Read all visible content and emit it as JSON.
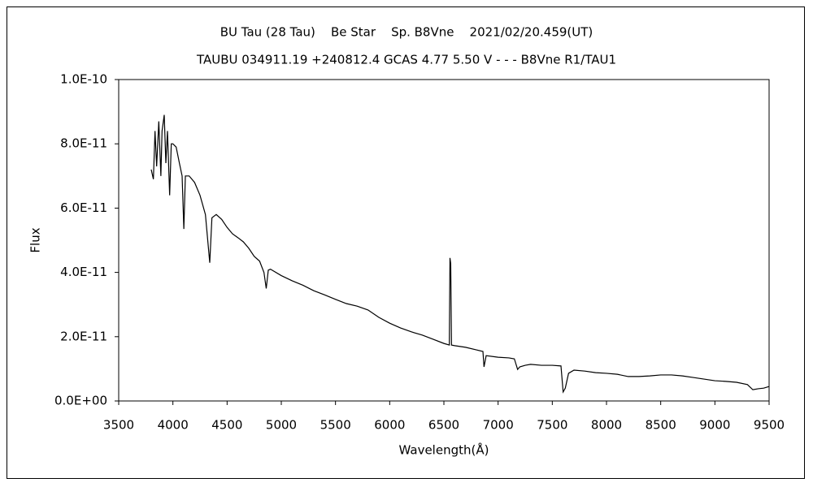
{
  "chart_data": {
    "type": "line",
    "title": "BU Tau (28 Tau)    Be Star    Sp. B8Vne    2021/02/20.459(UT)",
    "subtitle": "TAUBU 034911.19 +240812.4 GCAS 4.77 5.50 V - - - B8Vne R1/TAU1",
    "x_label": "Wavelength(Å)",
    "y_label": "Flux",
    "xlim": [
      3500,
      9500
    ],
    "xticks": [
      3500,
      4000,
      4500,
      5000,
      5500,
      6000,
      6500,
      7000,
      7500,
      8000,
      8500,
      9000,
      9500
    ],
    "ylim": [
      0,
      1e-10
    ],
    "yticks": [
      {
        "value": 0,
        "label": "0.0E+00"
      },
      {
        "value": 2e-11,
        "label": "2.0E-11"
      },
      {
        "value": 4e-11,
        "label": "4.0E-11"
      },
      {
        "value": 6e-11,
        "label": "6.0E-11"
      },
      {
        "value": 8e-11,
        "label": "8.0E-11"
      },
      {
        "value": 1e-10,
        "label": "1.0E-10"
      }
    ],
    "grid": false,
    "color": "#000000",
    "x": [
      3800,
      3820,
      3835,
      3850,
      3870,
      3889,
      3900,
      3920,
      3935,
      3950,
      3970,
      3985,
      4000,
      4030,
      4060,
      4085,
      4101,
      4115,
      4150,
      4200,
      4250,
      4300,
      4340,
      4360,
      4400,
      4450,
      4500,
      4550,
      4600,
      4650,
      4700,
      4750,
      4800,
      4840,
      4861,
      4880,
      4900,
      5000,
      5100,
      5200,
      5300,
      5400,
      5500,
      5600,
      5700,
      5800,
      5900,
      6000,
      6100,
      6200,
      6300,
      6400,
      6500,
      6550,
      6556,
      6563,
      6570,
      6600,
      6700,
      6800,
      6860,
      6870,
      6890,
      7000,
      7100,
      7150,
      7180,
      7200,
      7250,
      7300,
      7400,
      7500,
      7580,
      7600,
      7620,
      7650,
      7700,
      7800,
      7900,
      8000,
      8100,
      8200,
      8300,
      8400,
      8500,
      8600,
      8700,
      8800,
      8900,
      9000,
      9100,
      9200,
      9300,
      9350,
      9400,
      9450,
      9500
    ],
    "values": [
      7.2e-11,
      6.9e-11,
      8.4e-11,
      7.3e-11,
      8.7e-11,
      7e-11,
      8.4e-11,
      8.9e-11,
      7.4e-11,
      8.4e-11,
      6.4e-11,
      8e-11,
      8e-11,
      7.9e-11,
      7.4e-11,
      7e-11,
      5.35e-11,
      7e-11,
      7e-11,
      6.8e-11,
      6.4e-11,
      5.8e-11,
      4.3e-11,
      5.7e-11,
      5.8e-11,
      5.65e-11,
      5.4e-11,
      5.2e-11,
      5.08e-11,
      4.95e-11,
      4.75e-11,
      4.5e-11,
      4.35e-11,
      4e-11,
      3.5e-11,
      4.07e-11,
      4.1e-11,
      3.9e-11,
      3.74e-11,
      3.6e-11,
      3.43e-11,
      3.3e-11,
      3.16e-11,
      3.03e-11,
      2.95e-11,
      2.83e-11,
      2.6e-11,
      2.42e-11,
      2.27e-11,
      2.15e-11,
      2.05e-11,
      1.92e-11,
      1.79e-11,
      1.74e-11,
      4.45e-11,
      4.27e-11,
      1.74e-11,
      1.72e-11,
      1.67e-11,
      1.59e-11,
      1.54e-11,
      1.06e-11,
      1.41e-11,
      1.36e-11,
      1.34e-11,
      1.31e-11,
      9.8e-12,
      1.06e-11,
      1.11e-11,
      1.14e-11,
      1.11e-11,
      1.11e-11,
      1.09e-11,
      2.8e-12,
      4e-12,
      8.6e-12,
      9.6e-12,
      9.3e-12,
      8.8e-12,
      8.6e-12,
      8.3e-12,
      7.6e-12,
      7.6e-12,
      7.8e-12,
      8.1e-12,
      8.1e-12,
      7.8e-12,
      7.3e-12,
      6.8e-12,
      6.3e-12,
      6.1e-12,
      5.8e-12,
      5.1e-12,
      3.5e-12,
      3.8e-12,
      4e-12,
      4.5e-12
    ]
  }
}
